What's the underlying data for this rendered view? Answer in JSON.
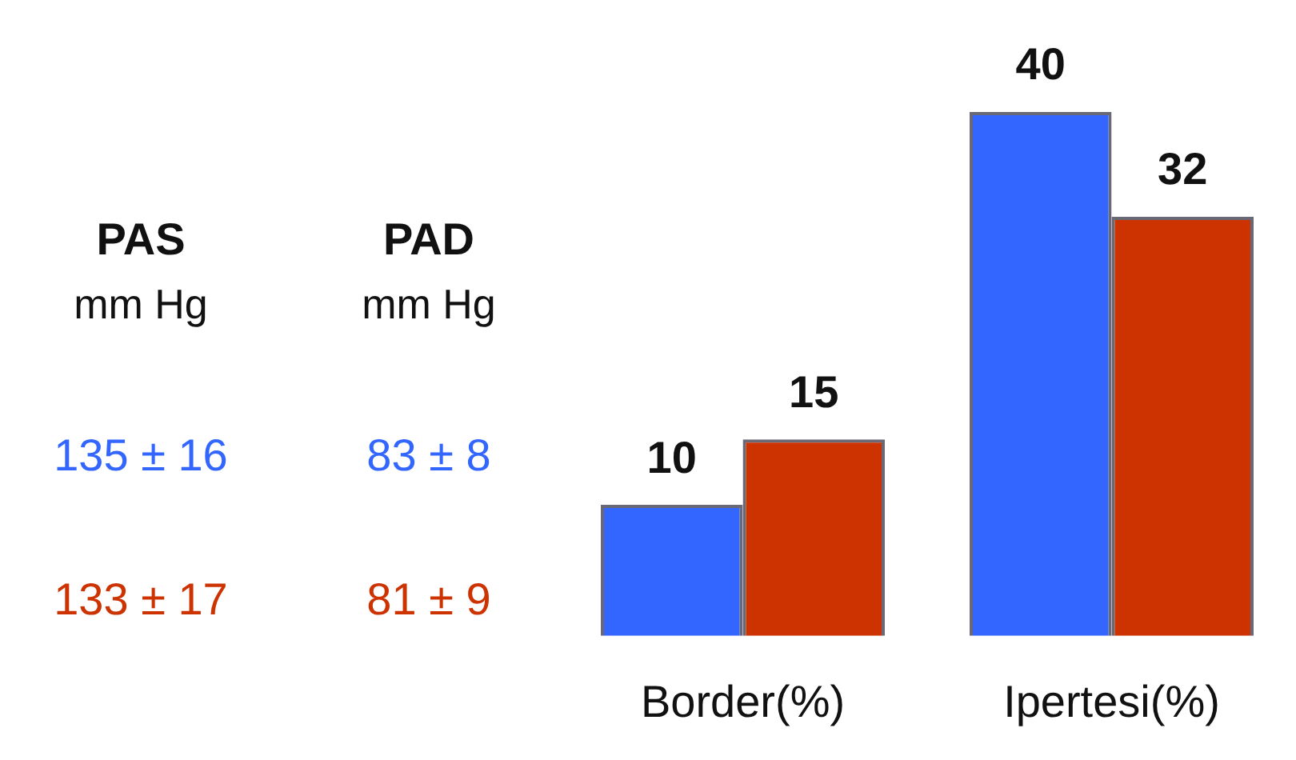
{
  "chart_data": {
    "type": "bar",
    "categories": [
      "Border(%)",
      "Ipertesi(%)"
    ],
    "series": [
      {
        "color": "#3366ff",
        "values": [
          10,
          40
        ]
      },
      {
        "color": "#cc3300",
        "values": [
          15,
          32
        ]
      }
    ],
    "data_labels": true,
    "annotations": [
      "PAS",
      "PAD",
      "mm Hg",
      "mm Hg",
      "135 ± 16",
      "83 ± 8",
      "133 ± 17",
      "81 ± 9"
    ]
  }
}
